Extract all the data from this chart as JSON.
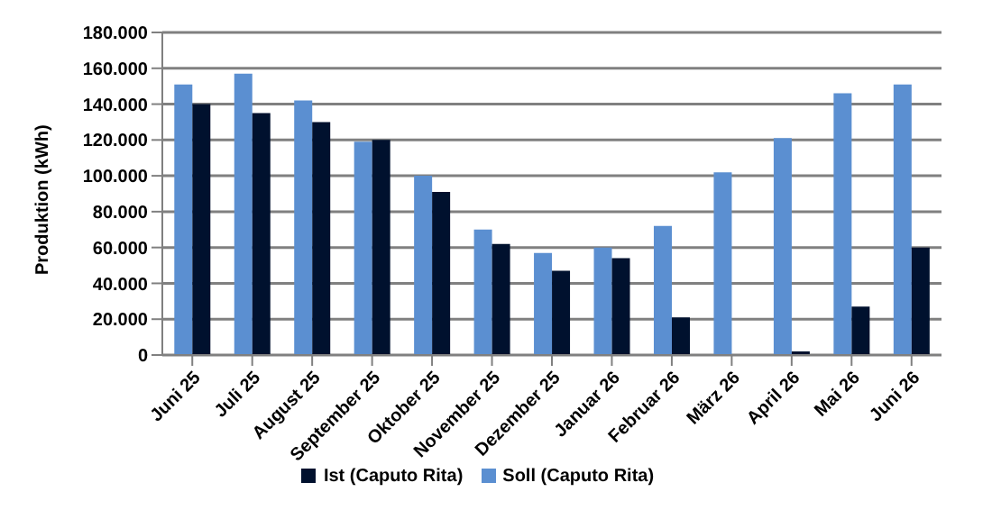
{
  "chart_data": {
    "type": "bar",
    "ylabel": "Produktion (kWh)",
    "categories": [
      "Juni 25",
      "Juli 25",
      "August 25",
      "September 25",
      "Oktober 25",
      "November 25",
      "Dezember 25",
      "Januar 26",
      "Februar 26",
      "März 26",
      "April 26",
      "Mai 26",
      "Juni 26"
    ],
    "series": [
      {
        "name": "Soll (Caputo Rita)",
        "color": "#5b8fd1",
        "values": [
          151000,
          157000,
          142000,
          119000,
          100000,
          70000,
          57000,
          60000,
          72000,
          102000,
          121000,
          146000,
          151000
        ]
      },
      {
        "name": "Ist (Caputo Rita)",
        "color": "#00112e",
        "values": [
          140000,
          135000,
          130000,
          120000,
          91000,
          62000,
          47000,
          54000,
          21000,
          null,
          2000,
          27000,
          60000
        ]
      }
    ],
    "ylim": [
      0,
      180000
    ],
    "yticks": [
      0,
      {
        "value": 20000,
        "label": "20.000"
      },
      {
        "value": 40000,
        "label": "40.000"
      },
      {
        "value": 60000,
        "label": "60.000"
      },
      {
        "value": 80000,
        "label": "80.000"
      },
      {
        "value": 100000,
        "label": "100.000"
      },
      {
        "value": 120000,
        "label": "120.000"
      },
      {
        "value": 140000,
        "label": "140.000"
      },
      {
        "value": 160000,
        "label": "160.000"
      },
      {
        "value": 180000,
        "label": "180.000"
      }
    ],
    "grid": "y",
    "legend": "bottom"
  }
}
